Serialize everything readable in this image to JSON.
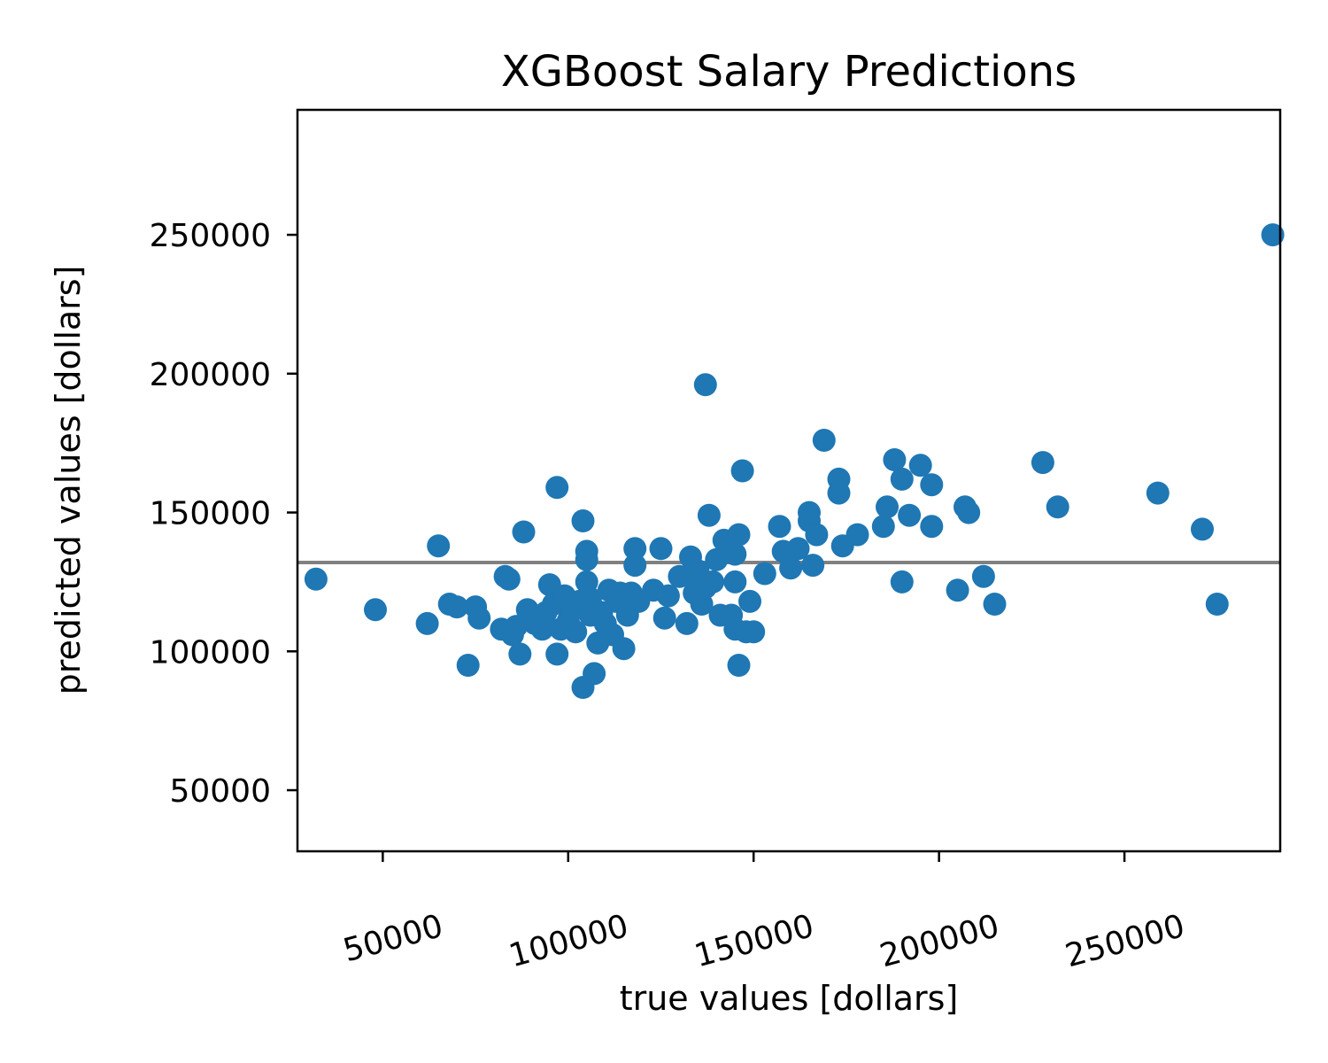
{
  "chart_data": {
    "type": "scatter",
    "title": "XGBoost Salary Predictions",
    "xlabel": "true values [dollars]",
    "ylabel": "predicted values [dollars]",
    "xlim": [
      27000,
      292000
    ],
    "ylim": [
      28000,
      295000
    ],
    "xticks": [
      50000,
      100000,
      150000,
      200000,
      250000
    ],
    "yticks": [
      50000,
      100000,
      150000,
      200000,
      250000
    ],
    "xtick_labels": [
      "50000",
      "100000",
      "150000",
      "200000",
      "250000"
    ],
    "ytick_labels": [
      "50000",
      "100000",
      "150000",
      "200000",
      "250000"
    ],
    "xtick_rotation_deg": -15,
    "grid": false,
    "point_color": "#1f77b4",
    "reference_line": {
      "y": 132000,
      "color": "#808080"
    },
    "points": [
      [
        32000,
        126000
      ],
      [
        48000,
        115000
      ],
      [
        62000,
        110000
      ],
      [
        65000,
        138000
      ],
      [
        68000,
        117000
      ],
      [
        70000,
        116000
      ],
      [
        73000,
        95000
      ],
      [
        75000,
        116000
      ],
      [
        76000,
        112000
      ],
      [
        82000,
        108000
      ],
      [
        83000,
        127000
      ],
      [
        84000,
        126000
      ],
      [
        85000,
        106000
      ],
      [
        86000,
        109000
      ],
      [
        87000,
        99000
      ],
      [
        88000,
        143000
      ],
      [
        89000,
        115000
      ],
      [
        90000,
        112000
      ],
      [
        91000,
        110000
      ],
      [
        92000,
        111000
      ],
      [
        93000,
        108000
      ],
      [
        94000,
        114000
      ],
      [
        95000,
        124000
      ],
      [
        96000,
        117000
      ],
      [
        97000,
        99000
      ],
      [
        97000,
        159000
      ],
      [
        98000,
        108000
      ],
      [
        99000,
        120000
      ],
      [
        100000,
        111000
      ],
      [
        101000,
        115000
      ],
      [
        102000,
        107000
      ],
      [
        103000,
        118000
      ],
      [
        104000,
        87000
      ],
      [
        104000,
        147000
      ],
      [
        105000,
        136000
      ],
      [
        105000,
        133000
      ],
      [
        105000,
        125000
      ],
      [
        106000,
        113000
      ],
      [
        106000,
        119000
      ],
      [
        107000,
        92000
      ],
      [
        108000,
        103000
      ],
      [
        109000,
        114000
      ],
      [
        110000,
        110000
      ],
      [
        111000,
        122000
      ],
      [
        112000,
        106000
      ],
      [
        113000,
        118000
      ],
      [
        114000,
        121000
      ],
      [
        115000,
        101000
      ],
      [
        116000,
        113000
      ],
      [
        117000,
        121000
      ],
      [
        118000,
        131000
      ],
      [
        118000,
        137000
      ],
      [
        119000,
        118000
      ],
      [
        123000,
        122000
      ],
      [
        125000,
        137000
      ],
      [
        126000,
        112000
      ],
      [
        127000,
        120000
      ],
      [
        130000,
        127000
      ],
      [
        132000,
        110000
      ],
      [
        133000,
        134000
      ],
      [
        134000,
        126000
      ],
      [
        134000,
        121000
      ],
      [
        135000,
        129000
      ],
      [
        136000,
        117000
      ],
      [
        137000,
        196000
      ],
      [
        137000,
        123000
      ],
      [
        138000,
        149000
      ],
      [
        139000,
        125000
      ],
      [
        140000,
        133000
      ],
      [
        141000,
        113000
      ],
      [
        142000,
        140000
      ],
      [
        143000,
        139000
      ],
      [
        144000,
        113000
      ],
      [
        145000,
        108000
      ],
      [
        145000,
        125000
      ],
      [
        145000,
        135000
      ],
      [
        146000,
        95000
      ],
      [
        146000,
        142000
      ],
      [
        147000,
        165000
      ],
      [
        148000,
        107000
      ],
      [
        149000,
        118000
      ],
      [
        150000,
        107000
      ],
      [
        153000,
        128000
      ],
      [
        157000,
        145000
      ],
      [
        158000,
        136000
      ],
      [
        160000,
        130000
      ],
      [
        162000,
        137000
      ],
      [
        165000,
        147000
      ],
      [
        165000,
        150000
      ],
      [
        166000,
        131000
      ],
      [
        167000,
        142000
      ],
      [
        169000,
        176000
      ],
      [
        173000,
        162000
      ],
      [
        173000,
        157000
      ],
      [
        174000,
        138000
      ],
      [
        178000,
        142000
      ],
      [
        185000,
        145000
      ],
      [
        186000,
        152000
      ],
      [
        188000,
        169000
      ],
      [
        190000,
        162000
      ],
      [
        190000,
        125000
      ],
      [
        192000,
        149000
      ],
      [
        195000,
        167000
      ],
      [
        198000,
        160000
      ],
      [
        198000,
        145000
      ],
      [
        205000,
        122000
      ],
      [
        207000,
        152000
      ],
      [
        208000,
        150000
      ],
      [
        212000,
        127000
      ],
      [
        215000,
        117000
      ],
      [
        228000,
        168000
      ],
      [
        232000,
        152000
      ],
      [
        259000,
        157000
      ],
      [
        271000,
        144000
      ],
      [
        275000,
        117000
      ],
      [
        290000,
        250000
      ]
    ]
  }
}
